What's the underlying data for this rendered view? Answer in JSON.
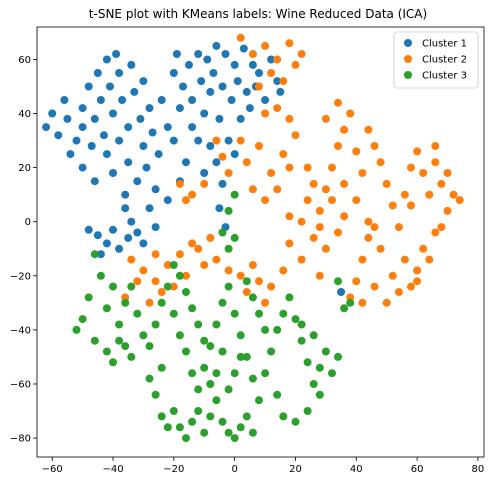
{
  "chart_data": {
    "type": "scatter",
    "title": "t-SNE plot with KMeans labels: Wine Reduced Data (ICA)",
    "xlabel": "",
    "ylabel": "",
    "xlim": [
      -65,
      82
    ],
    "ylim": [
      -87,
      72
    ],
    "xticks": [
      -60,
      -40,
      -20,
      0,
      20,
      40,
      60,
      80
    ],
    "yticks": [
      -80,
      -60,
      -40,
      -20,
      0,
      20,
      40,
      60
    ],
    "grid": false,
    "legend_position": "top-right",
    "series": [
      {
        "name": "Cluster 1",
        "color": "#1f77b4",
        "points": [
          [
            -60,
            40
          ],
          [
            -62,
            35
          ],
          [
            -58,
            32
          ],
          [
            -56,
            45
          ],
          [
            -55,
            38
          ],
          [
            -52,
            30
          ],
          [
            -50,
            42
          ],
          [
            -50,
            35
          ],
          [
            -48,
            50
          ],
          [
            -47,
            28
          ],
          [
            -46,
            38
          ],
          [
            -45,
            55
          ],
          [
            -44,
            45
          ],
          [
            -43,
            32
          ],
          [
            -42,
            60
          ],
          [
            -42,
            25
          ],
          [
            -41,
            50
          ],
          [
            -40,
            40
          ],
          [
            -40,
            18
          ],
          [
            -39,
            62
          ],
          [
            -38,
            55
          ],
          [
            -38,
            30
          ],
          [
            -37,
            45
          ],
          [
            -36,
            10
          ],
          [
            -35,
            35
          ],
          [
            -35,
            22
          ],
          [
            -34,
            58
          ],
          [
            -33,
            48
          ],
          [
            -32,
            15
          ],
          [
            -31,
            38
          ],
          [
            -30,
            28
          ],
          [
            -30,
            52
          ],
          [
            -29,
            20
          ],
          [
            -28,
            42
          ],
          [
            -27,
            33
          ],
          [
            -26,
            12
          ],
          [
            -25,
            25
          ],
          [
            -24,
            45
          ],
          [
            -22,
            35
          ],
          [
            -20,
            55
          ],
          [
            -19,
            62
          ],
          [
            -18,
            42
          ],
          [
            -17,
            50
          ],
          [
            -15,
            58
          ],
          [
            -14,
            45
          ],
          [
            -12,
            62
          ],
          [
            -11,
            52
          ],
          [
            -10,
            40
          ],
          [
            -9,
            60
          ],
          [
            -8,
            48
          ],
          [
            -7,
            55
          ],
          [
            -6,
            65
          ],
          [
            -5,
            38
          ],
          [
            -4,
            50
          ],
          [
            -3,
            62
          ],
          [
            -2,
            30
          ],
          [
            -1,
            45
          ],
          [
            0,
            58
          ],
          [
            0,
            25
          ],
          [
            1,
            52
          ],
          [
            2,
            38
          ],
          [
            3,
            64
          ],
          [
            4,
            48
          ],
          [
            5,
            42
          ],
          [
            6,
            58
          ],
          [
            7,
            50
          ],
          [
            8,
            55
          ],
          [
            10,
            45
          ],
          [
            12,
            60
          ],
          [
            14,
            52
          ],
          [
            15,
            48
          ],
          [
            -45,
            -5
          ],
          [
            -42,
            -8
          ],
          [
            -40,
            -3
          ],
          [
            -38,
            -10
          ],
          [
            -35,
            -6
          ],
          [
            -32,
            -4
          ],
          [
            -30,
            -8
          ],
          [
            -36,
            5
          ],
          [
            -34,
            0
          ],
          [
            -48,
            -3
          ],
          [
            -44,
            -12
          ],
          [
            -26,
            -2
          ],
          [
            -28,
            5
          ],
          [
            -22,
            8
          ],
          [
            -5,
            5
          ],
          [
            -3,
            -2
          ],
          [
            -50,
            20
          ],
          [
            -54,
            25
          ],
          [
            -46,
            15
          ],
          [
            35,
            -26
          ],
          [
            -20,
            30
          ],
          [
            -16,
            22
          ],
          [
            -12,
            30
          ],
          [
            -8,
            28
          ],
          [
            -14,
            35
          ],
          [
            -10,
            18
          ],
          [
            -6,
            22
          ],
          [
            -4,
            14
          ],
          [
            -18,
            15
          ]
        ]
      },
      {
        "name": "Cluster 2",
        "color": "#ff7f0e",
        "points": [
          [
            2,
            68
          ],
          [
            6,
            62
          ],
          [
            10,
            65
          ],
          [
            14,
            60
          ],
          [
            18,
            66
          ],
          [
            20,
            58
          ],
          [
            22,
            62
          ],
          [
            12,
            55
          ],
          [
            16,
            52
          ],
          [
            8,
            50
          ],
          [
            10,
            40
          ],
          [
            14,
            42
          ],
          [
            18,
            38
          ],
          [
            20,
            32
          ],
          [
            16,
            25
          ],
          [
            12,
            18
          ],
          [
            18,
            20
          ],
          [
            8,
            28
          ],
          [
            4,
            22
          ],
          [
            2,
            30
          ],
          [
            -2,
            18
          ],
          [
            -4,
            24
          ],
          [
            -6,
            30
          ],
          [
            -10,
            14
          ],
          [
            -14,
            10
          ],
          [
            -18,
            14
          ],
          [
            -16,
            8
          ],
          [
            6,
            12
          ],
          [
            10,
            8
          ],
          [
            14,
            12
          ],
          [
            18,
            2
          ],
          [
            22,
            0
          ],
          [
            24,
            8
          ],
          [
            26,
            -6
          ],
          [
            28,
            4
          ],
          [
            30,
            12
          ],
          [
            32,
            20
          ],
          [
            34,
            28
          ],
          [
            36,
            34
          ],
          [
            38,
            40
          ],
          [
            40,
            26
          ],
          [
            42,
            18
          ],
          [
            44,
            34
          ],
          [
            46,
            28
          ],
          [
            48,
            22
          ],
          [
            50,
            14
          ],
          [
            52,
            6
          ],
          [
            54,
            -2
          ],
          [
            56,
            10
          ],
          [
            58,
            20
          ],
          [
            60,
            26
          ],
          [
            62,
            18
          ],
          [
            64,
            10
          ],
          [
            66,
            22
          ],
          [
            68,
            14
          ],
          [
            70,
            4
          ],
          [
            72,
            10
          ],
          [
            74,
            8
          ],
          [
            66,
            -4
          ],
          [
            62,
            -10
          ],
          [
            60,
            -18
          ],
          [
            58,
            -24
          ],
          [
            56,
            -14
          ],
          [
            52,
            -20
          ],
          [
            48,
            -10
          ],
          [
            44,
            -6
          ],
          [
            42,
            -14
          ],
          [
            40,
            -22
          ],
          [
            38,
            -28
          ],
          [
            42,
            -30
          ],
          [
            46,
            -24
          ],
          [
            36,
            2
          ],
          [
            34,
            -4
          ],
          [
            32,
            8
          ],
          [
            30,
            -10
          ],
          [
            28,
            -2
          ],
          [
            26,
            14
          ],
          [
            24,
            20
          ],
          [
            36,
            14
          ],
          [
            40,
            8
          ],
          [
            44,
            0
          ],
          [
            46,
            -2
          ],
          [
            50,
            -30
          ],
          [
            54,
            -26
          ],
          [
            60,
            -22
          ],
          [
            58,
            6
          ],
          [
            64,
            -14
          ],
          [
            68,
            -2
          ],
          [
            70,
            18
          ],
          [
            66,
            28
          ],
          [
            -30,
            -18
          ],
          [
            -26,
            -22
          ],
          [
            -22,
            -16
          ],
          [
            -18,
            -12
          ],
          [
            -16,
            -20
          ],
          [
            -14,
            -8
          ],
          [
            -10,
            -16
          ],
          [
            -6,
            -14
          ],
          [
            -2,
            -18
          ],
          [
            2,
            -20
          ],
          [
            6,
            -16
          ],
          [
            8,
            -22
          ],
          [
            12,
            -24
          ],
          [
            -34,
            -14
          ],
          [
            -28,
            -30
          ],
          [
            -24,
            -26
          ],
          [
            -20,
            -24
          ],
          [
            -36,
            -28
          ],
          [
            4,
            -26
          ],
          [
            10,
            -30
          ],
          [
            -12,
            -10
          ],
          [
            -8,
            -6
          ],
          [
            16,
            -18
          ],
          [
            -32,
            -22
          ],
          [
            -26,
            -12
          ],
          [
            28,
            -20
          ],
          [
            22,
            -14
          ],
          [
            18,
            -8
          ],
          [
            30,
            38
          ],
          [
            34,
            44
          ]
        ]
      },
      {
        "name": "Cluster 3",
        "color": "#2ca02c",
        "points": [
          [
            -46,
            -12
          ],
          [
            -44,
            -20
          ],
          [
            -48,
            -28
          ],
          [
            -50,
            -36
          ],
          [
            -52,
            -40
          ],
          [
            -46,
            -44
          ],
          [
            -42,
            -48
          ],
          [
            -40,
            -52
          ],
          [
            -38,
            -38
          ],
          [
            -36,
            -30
          ],
          [
            -34,
            -24
          ],
          [
            -32,
            -34
          ],
          [
            -30,
            -42
          ],
          [
            -28,
            -46
          ],
          [
            -26,
            -38
          ],
          [
            -24,
            -30
          ],
          [
            -22,
            -24
          ],
          [
            -20,
            -34
          ],
          [
            -18,
            -42
          ],
          [
            -16,
            -48
          ],
          [
            -14,
            -56
          ],
          [
            -12,
            -62
          ],
          [
            -10,
            -54
          ],
          [
            -8,
            -46
          ],
          [
            -6,
            -38
          ],
          [
            -4,
            -30
          ],
          [
            -2,
            -24
          ],
          [
            0,
            -34
          ],
          [
            2,
            -42
          ],
          [
            4,
            -50
          ],
          [
            6,
            -58
          ],
          [
            8,
            -66
          ],
          [
            10,
            -56
          ],
          [
            12,
            -48
          ],
          [
            14,
            -40
          ],
          [
            16,
            -34
          ],
          [
            18,
            -28
          ],
          [
            20,
            -36
          ],
          [
            22,
            -44
          ],
          [
            24,
            -52
          ],
          [
            26,
            -60
          ],
          [
            28,
            -54
          ],
          [
            30,
            -48
          ],
          [
            32,
            -56
          ],
          [
            34,
            -50
          ],
          [
            28,
            -64
          ],
          [
            24,
            -70
          ],
          [
            20,
            -74
          ],
          [
            16,
            -72
          ],
          [
            14,
            -64
          ],
          [
            -20,
            -70
          ],
          [
            -18,
            -76
          ],
          [
            -16,
            -80
          ],
          [
            -14,
            -74
          ],
          [
            -12,
            -70
          ],
          [
            -22,
            -76
          ],
          [
            -24,
            -72
          ],
          [
            -10,
            -78
          ],
          [
            -8,
            -72
          ],
          [
            -6,
            -66
          ],
          [
            -4,
            -74
          ],
          [
            -2,
            -78
          ],
          [
            0,
            -80
          ],
          [
            2,
            -76
          ],
          [
            4,
            -72
          ],
          [
            6,
            -78
          ],
          [
            -2,
            -62
          ],
          [
            0,
            -56
          ],
          [
            2,
            -50
          ],
          [
            -4,
            -48
          ],
          [
            -6,
            -56
          ],
          [
            -8,
            -60
          ],
          [
            -10,
            -44
          ],
          [
            -12,
            -38
          ],
          [
            -14,
            -32
          ],
          [
            -16,
            -26
          ],
          [
            -18,
            -20
          ],
          [
            -20,
            -16
          ],
          [
            -2,
            -10
          ],
          [
            -4,
            -4
          ],
          [
            0,
            -6
          ],
          [
            -2,
            4
          ],
          [
            0,
            10
          ],
          [
            36,
            -32
          ],
          [
            38,
            -30
          ],
          [
            -40,
            -24
          ],
          [
            -42,
            -32
          ],
          [
            -38,
            -44
          ],
          [
            -36,
            -46
          ],
          [
            -34,
            -50
          ],
          [
            22,
            -38
          ],
          [
            26,
            -42
          ],
          [
            10,
            -40
          ],
          [
            8,
            -34
          ],
          [
            6,
            -28
          ],
          [
            4,
            -22
          ],
          [
            -26,
            -64
          ],
          [
            -28,
            -58
          ],
          [
            -24,
            -54
          ],
          [
            34,
            -22
          ]
        ]
      }
    ]
  }
}
